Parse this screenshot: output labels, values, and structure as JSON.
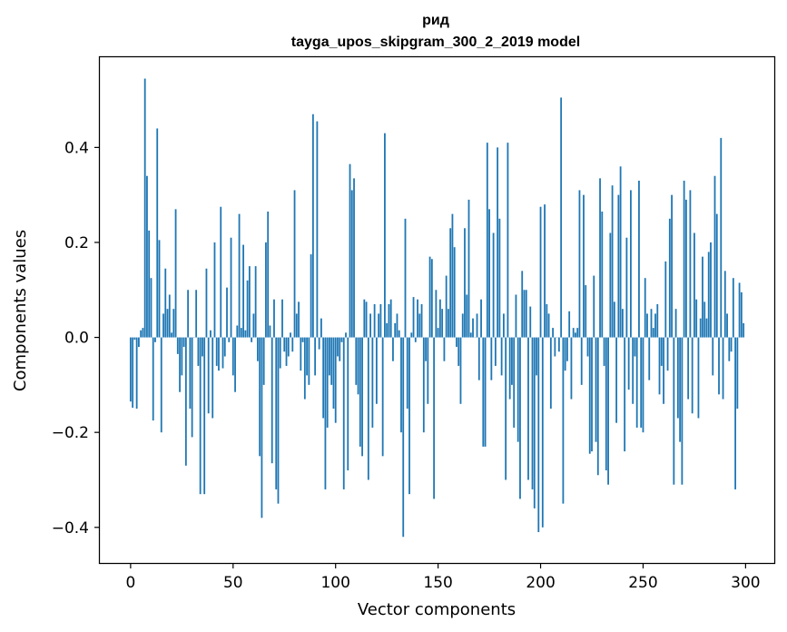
{
  "chart_data": {
    "type": "bar",
    "title": "рид",
    "subtitle": "tayga_upos_skipgram_300_2_2019 model",
    "xlabel": "Vector components",
    "ylabel": "Components values",
    "xlim": [
      -15,
      314
    ],
    "ylim": [
      -0.475,
      0.59
    ],
    "xticks": [
      0,
      50,
      100,
      150,
      200,
      250,
      300
    ],
    "yticks": [
      -0.4,
      -0.2,
      0.0,
      0.2,
      0.4
    ],
    "ytick_labels": [
      "−0.4",
      "−0.2",
      "0.0",
      "0.2",
      "0.4"
    ],
    "grid": false,
    "bar_color": "#1f77b4",
    "values": [
      -0.135,
      -0.148,
      -0.005,
      -0.15,
      -0.02,
      0.015,
      0.02,
      0.545,
      0.34,
      0.225,
      0.125,
      -0.175,
      -0.01,
      0.44,
      0.205,
      -0.2,
      0.05,
      0.145,
      0.06,
      0.09,
      0.01,
      0.06,
      0.27,
      -0.035,
      -0.115,
      -0.08,
      -0.02,
      -0.27,
      0.1,
      -0.15,
      -0.21,
      0.0,
      0.1,
      -0.06,
      -0.33,
      -0.04,
      -0.33,
      0.145,
      -0.16,
      0.015,
      -0.17,
      0.2,
      -0.06,
      -0.07,
      0.275,
      -0.065,
      -0.04,
      0.105,
      -0.01,
      0.21,
      -0.08,
      -0.115,
      0.025,
      0.26,
      0.02,
      0.195,
      0.015,
      0.12,
      0.15,
      -0.01,
      0.05,
      0.15,
      -0.05,
      -0.25,
      -0.38,
      -0.1,
      0.2,
      0.265,
      0.025,
      -0.265,
      0.08,
      -0.32,
      -0.35,
      -0.065,
      0.08,
      -0.03,
      -0.06,
      -0.04,
      0.01,
      -0.03,
      0.31,
      0.05,
      0.075,
      -0.07,
      -0.01,
      -0.13,
      -0.08,
      -0.1,
      0.175,
      0.47,
      -0.08,
      0.455,
      -0.025,
      0.04,
      -0.17,
      -0.32,
      -0.19,
      -0.08,
      -0.1,
      -0.15,
      -0.18,
      -0.04,
      -0.05,
      -0.01,
      -0.32,
      0.01,
      -0.28,
      0.365,
      0.31,
      0.335,
      -0.1,
      -0.12,
      -0.23,
      -0.25,
      0.08,
      0.075,
      -0.3,
      0.05,
      -0.19,
      0.07,
      -0.14,
      0.05,
      0.07,
      -0.25,
      0.43,
      0.03,
      0.07,
      0.08,
      -0.05,
      0.03,
      0.05,
      0.015,
      -0.2,
      -0.42,
      0.25,
      -0.15,
      -0.33,
      0.01,
      0.085,
      -0.01,
      0.08,
      0.05,
      0.07,
      -0.2,
      -0.05,
      -0.14,
      0.17,
      0.165,
      -0.34,
      0.1,
      0.02,
      0.08,
      0.06,
      -0.05,
      0.13,
      0.06,
      0.23,
      0.26,
      0.19,
      -0.02,
      -0.06,
      -0.14,
      0.05,
      0.23,
      0.09,
      0.29,
      0.01,
      0.04,
      0.0,
      0.05,
      -0.09,
      0.08,
      -0.23,
      -0.23,
      0.41,
      0.27,
      -0.09,
      0.22,
      -0.06,
      0.4,
      0.25,
      -0.08,
      0.05,
      -0.3,
      0.41,
      -0.13,
      -0.1,
      -0.19,
      0.09,
      -0.22,
      -0.34,
      0.14,
      0.1,
      0.1,
      -0.3,
      0.065,
      -0.32,
      -0.36,
      -0.08,
      -0.41,
      0.275,
      -0.4,
      0.28,
      0.07,
      0.05,
      -0.15,
      0.02,
      -0.04,
      0.0,
      -0.03,
      0.505,
      -0.35,
      -0.07,
      -0.05,
      0.055,
      -0.13,
      0.02,
      0.01,
      0.02,
      0.31,
      -0.1,
      0.3,
      0.11,
      -0.04,
      -0.245,
      -0.24,
      0.13,
      -0.22,
      -0.29,
      0.335,
      0.265,
      -0.06,
      -0.28,
      -0.31,
      0.22,
      0.32,
      0.075,
      -0.18,
      0.3,
      0.36,
      0.06,
      -0.24,
      0.21,
      -0.11,
      0.31,
      -0.14,
      -0.04,
      -0.19,
      0.33,
      -0.19,
      -0.2,
      0.125,
      0.05,
      -0.09,
      0.06,
      0.02,
      0.05,
      0.07,
      -0.12,
      -0.06,
      -0.14,
      0.16,
      -0.07,
      0.25,
      0.3,
      -0.31,
      0.06,
      -0.17,
      -0.22,
      -0.31,
      0.33,
      0.29,
      -0.13,
      0.31,
      -0.16,
      0.22,
      0.08,
      -0.17,
      0.04,
      0.17,
      0.075,
      0.04,
      0.18,
      0.2,
      -0.08,
      0.34,
      0.26,
      -0.12,
      0.42,
      -0.13,
      0.14,
      0.05,
      -0.05,
      -0.03,
      0.125,
      -0.32,
      -0.15,
      0.115,
      0.095,
      0.03
    ]
  }
}
